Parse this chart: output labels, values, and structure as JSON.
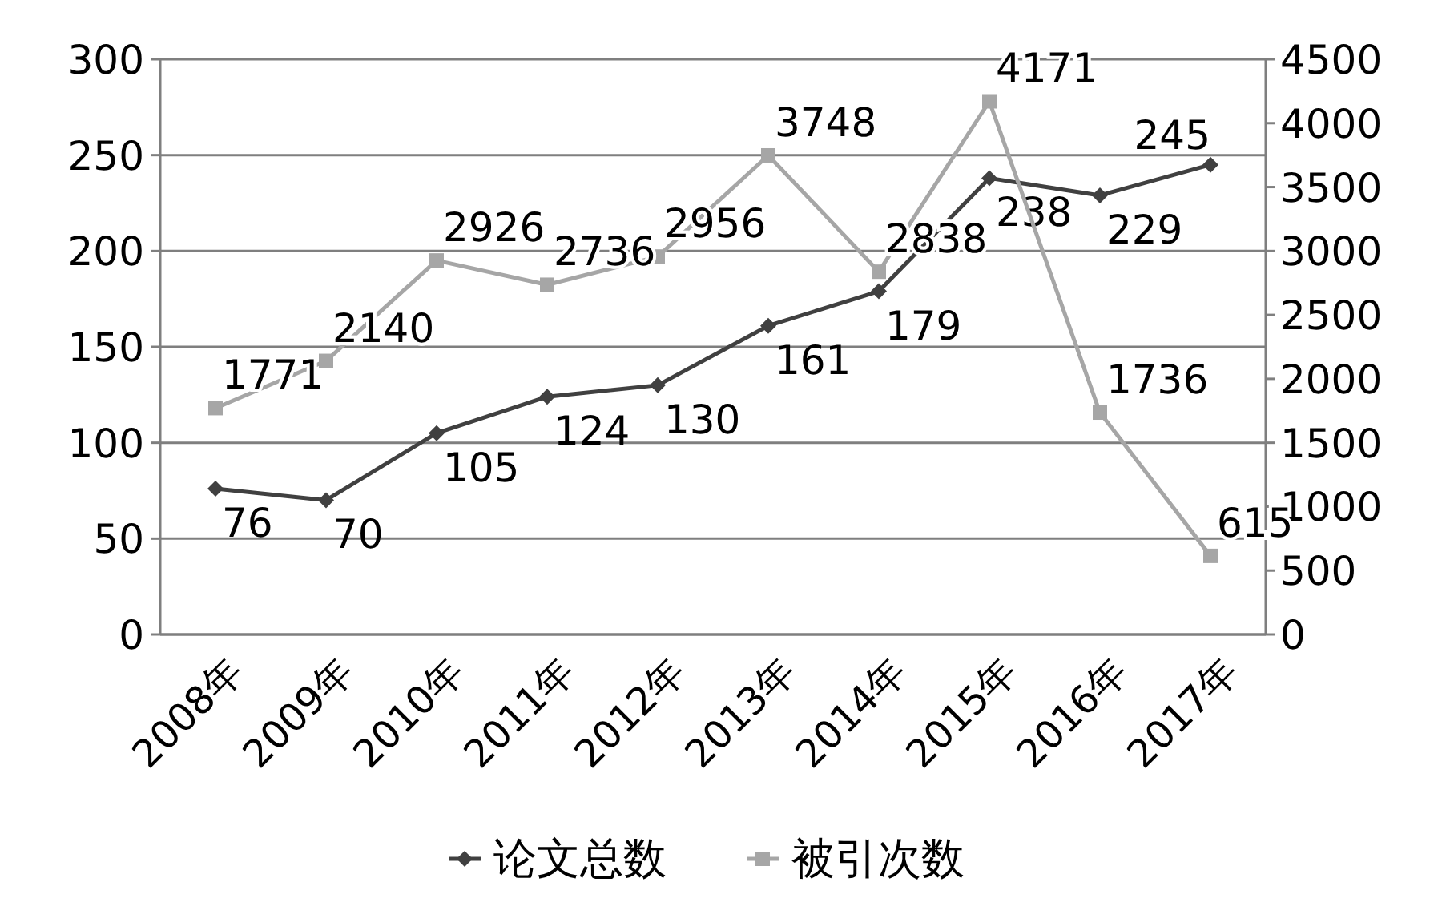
{
  "chart_data": {
    "type": "line",
    "categories": [
      "2008年",
      "2009年",
      "2010年",
      "2011年",
      "2012年",
      "2013年",
      "2014年",
      "2015年",
      "2016年",
      "2017年"
    ],
    "series": [
      {
        "name": "论文总数",
        "color": "#404040",
        "marker": "diamond",
        "values": [
          76,
          70,
          105,
          124,
          130,
          161,
          179,
          238,
          229,
          245
        ]
      },
      {
        "name": "被引次数",
        "color": "#a6a6a6",
        "marker": "square",
        "axis": "y2",
        "values": [
          1771,
          2140,
          2926,
          2736,
          2956,
          3748,
          2838,
          4171,
          1736,
          615
        ]
      }
    ],
    "ylim": [
      0,
      300
    ],
    "yticks": [
      0,
      50,
      100,
      150,
      200,
      250,
      300
    ],
    "y2lim": [
      0,
      4500
    ],
    "y2ticks": [
      0,
      500,
      1000,
      1500,
      2000,
      2500,
      3000,
      3500,
      4000,
      4500
    ],
    "grid": "y",
    "legend": "bottom",
    "data_labels": true,
    "line_style": "solid"
  }
}
